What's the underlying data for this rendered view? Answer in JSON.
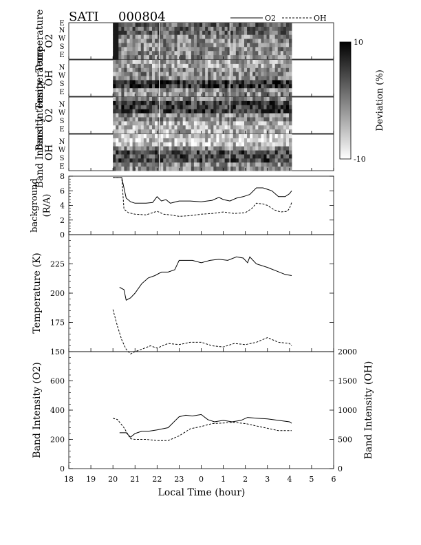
{
  "header": {
    "instrument": "SATI",
    "date": "000804"
  },
  "legend": [
    {
      "label": "O2",
      "style": "solid"
    },
    {
      "label": "OH",
      "style": "dashed"
    }
  ],
  "colorbar": {
    "label": "Deviation (%)",
    "max": 10,
    "min": -10,
    "max_label": "10",
    "min_label": "-10",
    "high_color": "#000000",
    "low_color": "#ffffff"
  },
  "keograms": {
    "directions": [
      "E",
      "N",
      "W",
      "S",
      "E"
    ],
    "tick_labels": [
      "N",
      "W",
      "S",
      "E"
    ],
    "x_start": 20.0,
    "x_end": 4.1,
    "panels": [
      {
        "label_line1": "Temperature",
        "label_line2": "O2"
      },
      {
        "label_line1": "Temperature",
        "label_line2": "OH"
      },
      {
        "label_line1": "Band  Intensity",
        "label_line2": "O2"
      },
      {
        "label_line1": "Band  Intensity",
        "label_line2": "OH"
      }
    ]
  },
  "x_axis": {
    "label": "Local  Time  (hour)",
    "ticks": [
      "18",
      "19",
      "20",
      "21",
      "22",
      "23",
      "0",
      "1",
      "2",
      "3",
      "4",
      "5",
      "6"
    ]
  },
  "chart_data": [
    {
      "type": "line",
      "ylabel_line1": "background",
      "ylabel_line2": "(R/A)",
      "ylim": [
        0,
        8
      ],
      "yticks": [
        0,
        2,
        4,
        6,
        8
      ],
      "series": [
        {
          "name": "O2",
          "style": "solid",
          "x": [
            20.0,
            20.4,
            20.6,
            20.8,
            21.0,
            21.5,
            21.8,
            22.0,
            22.2,
            22.4,
            22.6,
            23.0,
            23.5,
            24.0,
            24.5,
            24.8,
            25.0,
            25.3,
            25.6,
            25.9,
            26.2,
            26.5,
            26.8,
            27.0,
            27.2,
            27.5,
            27.8,
            28.0,
            28.1
          ],
          "y": [
            7.8,
            7.8,
            5.0,
            4.5,
            4.3,
            4.3,
            4.4,
            5.2,
            4.6,
            4.8,
            4.3,
            4.6,
            4.6,
            4.5,
            4.7,
            5.1,
            4.8,
            4.6,
            5.0,
            5.2,
            5.5,
            6.4,
            6.4,
            6.2,
            6.0,
            5.2,
            5.2,
            5.6,
            6.0
          ]
        },
        {
          "name": "OH",
          "style": "dashed",
          "x": [
            20.0,
            20.4,
            20.5,
            20.7,
            21.0,
            21.5,
            22.0,
            22.3,
            22.6,
            23.0,
            23.5,
            24.0,
            24.5,
            25.0,
            25.5,
            26.0,
            26.3,
            26.5,
            26.8,
            27.0,
            27.3,
            27.6,
            27.9,
            28.0,
            28.1
          ],
          "y": [
            7.8,
            7.8,
            3.5,
            3.0,
            2.8,
            2.7,
            3.2,
            2.8,
            2.7,
            2.5,
            2.6,
            2.8,
            2.9,
            3.1,
            2.9,
            3.0,
            3.6,
            4.3,
            4.2,
            4.0,
            3.4,
            3.1,
            3.2,
            3.6,
            4.4
          ]
        }
      ]
    },
    {
      "type": "line",
      "ylabel": "Temperature  (K)",
      "ylim": [
        150,
        250
      ],
      "yticks": [
        150,
        175,
        200,
        225
      ],
      "series": [
        {
          "name": "O2",
          "style": "solid",
          "x": [
            20.3,
            20.5,
            20.6,
            20.8,
            21.0,
            21.3,
            21.6,
            21.9,
            22.2,
            22.5,
            22.8,
            23.0,
            23.3,
            23.6,
            24.0,
            24.4,
            24.8,
            25.2,
            25.6,
            25.9,
            26.1,
            26.2,
            26.5,
            27.0,
            27.4,
            27.8,
            28.1
          ],
          "y": [
            205,
            203,
            194,
            196,
            200,
            208,
            213,
            215,
            218,
            218,
            220,
            228,
            228,
            228,
            226,
            228,
            229,
            228,
            231,
            230,
            226,
            231,
            225,
            222,
            219,
            216,
            215
          ]
        },
        {
          "name": "OH",
          "style": "dashed",
          "x": [
            20.0,
            20.2,
            20.4,
            20.6,
            20.8,
            21.0,
            21.3,
            21.7,
            22.0,
            22.5,
            23.0,
            23.5,
            24.0,
            24.5,
            25.0,
            25.5,
            26.0,
            26.5,
            27.0,
            27.5,
            28.0,
            28.1
          ],
          "y": [
            186,
            172,
            160,
            152,
            148,
            150,
            152,
            155,
            153,
            157,
            156,
            158,
            158,
            155,
            154,
            157,
            156,
            158,
            162,
            158,
            157,
            155
          ]
        }
      ]
    },
    {
      "type": "line",
      "ylabel": "Band  Intensity  (O2)",
      "ylabel_right": "Band  Intensity  (OH)",
      "ylim": [
        0,
        800
      ],
      "yticks": [
        0,
        200,
        400,
        600
      ],
      "ylim_right": [
        0,
        2000
      ],
      "yticks_right": [
        0,
        500,
        1000,
        1500,
        2000
      ],
      "series": [
        {
          "name": "O2",
          "style": "solid",
          "axis": "left",
          "x": [
            20.3,
            20.6,
            20.8,
            21.0,
            21.3,
            21.6,
            22.0,
            22.5,
            23.0,
            23.3,
            23.6,
            24.0,
            24.3,
            24.6,
            25.0,
            25.4,
            25.8,
            26.1,
            26.5,
            27.0,
            27.5,
            28.0,
            28.1
          ],
          "y": [
            245,
            245,
            215,
            240,
            255,
            255,
            265,
            280,
            355,
            365,
            360,
            370,
            335,
            320,
            330,
            320,
            330,
            350,
            345,
            340,
            330,
            320,
            310
          ]
        },
        {
          "name": "OH",
          "style": "dashed",
          "axis": "right",
          "x": [
            20.0,
            20.2,
            20.5,
            20.8,
            21.0,
            21.5,
            22.0,
            22.5,
            23.0,
            23.5,
            24.0,
            24.5,
            25.0,
            25.5,
            26.0,
            26.5,
            27.0,
            27.5,
            28.0,
            28.1
          ],
          "y": [
            860,
            840,
            700,
            510,
            500,
            500,
            480,
            480,
            560,
            680,
            720,
            770,
            780,
            790,
            770,
            730,
            690,
            650,
            650,
            650
          ]
        }
      ]
    }
  ]
}
